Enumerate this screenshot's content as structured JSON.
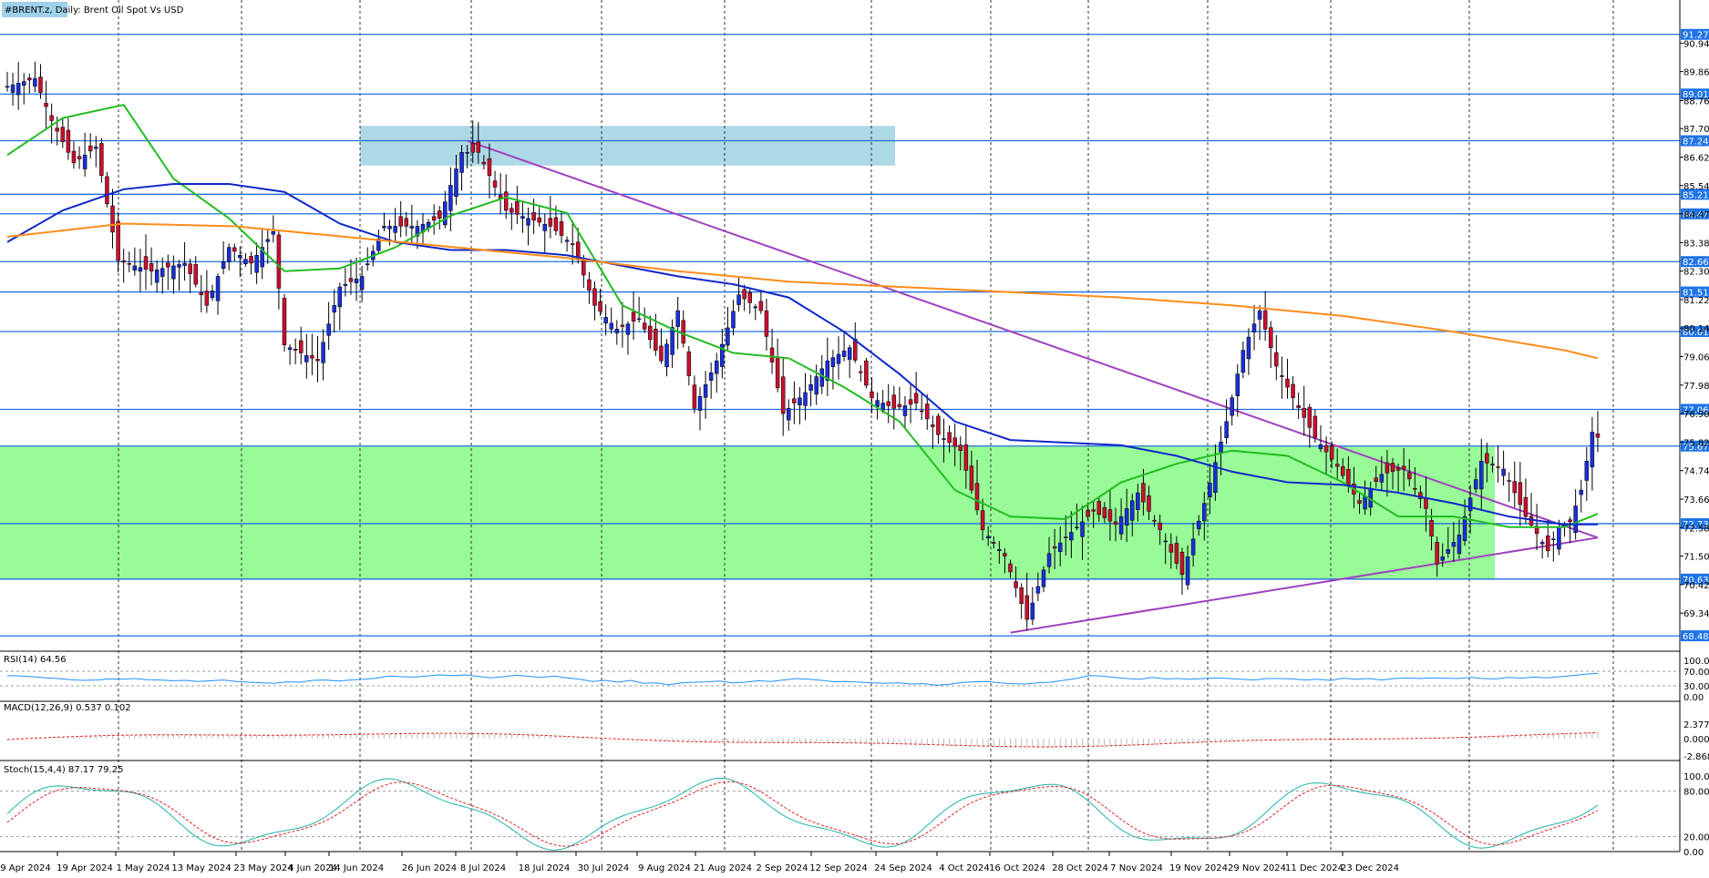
{
  "window": {
    "title": "#BRENT.z, Daily:  Brent Oil Spot Vs USD"
  },
  "chart_data": {
    "type": "candlestick",
    "symbol": "#BRENT.z",
    "timeframe": "Daily",
    "description": "Brent Oil Spot Vs USD",
    "price_axis": {
      "range": [
        68.0,
        92.4
      ],
      "ticks": [
        "90.94",
        "89.86",
        "88.76",
        "87.70",
        "86.62",
        "85.54",
        "84.47",
        "83.38",
        "82.30",
        "81.22",
        "80.14",
        "79.06",
        "77.98",
        "76.90",
        "75.82",
        "74.74",
        "73.66",
        "72.58",
        "71.50",
        "70.42",
        "69.34"
      ]
    },
    "x_labels": [
      "9 Apr 2024",
      "19 Apr 2024",
      "1 May 2024",
      "13 May 2024",
      "23 May 2024",
      "4 Jun 2024",
      "14 Jun 2024",
      "26 Jun 2024",
      "8 Jul 2024",
      "18 Jul 2024",
      "30 Jul 2024",
      "9 Aug 2024",
      "21 Aug 2024",
      "2 Sep 2024",
      "12 Sep 2024",
      "24 Sep 2024",
      "4 Oct 2024",
      "16 Oct 2024",
      "28 Oct 2024",
      "7 Nov 2024",
      "19 Nov 2024",
      "29 Nov 2024",
      "11 Dec 2024",
      "23 Dec 2024"
    ],
    "levels": [
      "91.27",
      "89.01",
      "87.24",
      "85.21",
      "84.47",
      "82.66",
      "81.51",
      "80.01",
      "77.06",
      "75.67",
      "72.73",
      "70.63",
      "68.48"
    ],
    "zones": {
      "supply": {
        "from": 86.3,
        "to": 87.8,
        "color": "#add8e6"
      },
      "range": {
        "from": 70.63,
        "to": 75.67,
        "color": "#98fb98"
      }
    },
    "trendlines": {
      "color": "#a040c0",
      "descending": {
        "from": [
          83,
          87.24
        ],
        "to": [
          287,
          72.2
        ]
      },
      "ascending": {
        "from": [
          181,
          68.6
        ],
        "to": [
          287,
          72.2
        ]
      }
    },
    "moving_averages": [
      {
        "color": "#22bb22",
        "points": [
          [
            0,
            86.7
          ],
          [
            10,
            88.1
          ],
          [
            21,
            88.6
          ],
          [
            30,
            85.8
          ],
          [
            40,
            84.3
          ],
          [
            50,
            82.3
          ],
          [
            60,
            82.4
          ],
          [
            70,
            83.2
          ],
          [
            80,
            84.4
          ],
          [
            90,
            85.1
          ],
          [
            101,
            84.5
          ],
          [
            111,
            81.0
          ],
          [
            121,
            80.0
          ],
          [
            131,
            79.2
          ],
          [
            141,
            79.0
          ],
          [
            151,
            77.9
          ],
          [
            161,
            76.6
          ],
          [
            171,
            74.0
          ],
          [
            181,
            73.0
          ],
          [
            191,
            72.9
          ],
          [
            201,
            74.3
          ],
          [
            211,
            75.0
          ],
          [
            221,
            75.5
          ],
          [
            231,
            75.3
          ],
          [
            241,
            74.3
          ],
          [
            251,
            73.0
          ],
          [
            261,
            73.0
          ],
          [
            271,
            72.6
          ],
          [
            281,
            72.6
          ],
          [
            287,
            73.1
          ]
        ]
      },
      {
        "color": "#1028c8",
        "points": [
          [
            0,
            83.4
          ],
          [
            10,
            84.6
          ],
          [
            21,
            85.4
          ],
          [
            30,
            85.6
          ],
          [
            40,
            85.6
          ],
          [
            50,
            85.3
          ],
          [
            60,
            84.1
          ],
          [
            70,
            83.4
          ],
          [
            80,
            83.1
          ],
          [
            90,
            83.1
          ],
          [
            101,
            82.9
          ],
          [
            111,
            82.5
          ],
          [
            121,
            82.1
          ],
          [
            131,
            81.8
          ],
          [
            141,
            81.3
          ],
          [
            151,
            80.0
          ],
          [
            161,
            78.4
          ],
          [
            171,
            76.6
          ],
          [
            181,
            75.9
          ],
          [
            191,
            75.8
          ],
          [
            201,
            75.7
          ],
          [
            211,
            75.3
          ],
          [
            221,
            74.7
          ],
          [
            231,
            74.3
          ],
          [
            241,
            74.2
          ],
          [
            251,
            73.9
          ],
          [
            261,
            73.5
          ],
          [
            271,
            73.0
          ],
          [
            281,
            72.7
          ],
          [
            287,
            72.7
          ]
        ]
      },
      {
        "color": "#ff8c1a",
        "points": [
          [
            0,
            83.6
          ],
          [
            21,
            84.1
          ],
          [
            41,
            84.0
          ],
          [
            61,
            83.6
          ],
          [
            81,
            83.2
          ],
          [
            101,
            82.8
          ],
          [
            121,
            82.3
          ],
          [
            141,
            81.9
          ],
          [
            161,
            81.7
          ],
          [
            181,
            81.5
          ],
          [
            201,
            81.3
          ],
          [
            221,
            81.0
          ],
          [
            241,
            80.6
          ],
          [
            261,
            80.0
          ],
          [
            281,
            79.3
          ],
          [
            287,
            79.0
          ]
        ]
      }
    ],
    "rsi": {
      "label": "RSI(14) 64.56",
      "ticks": [
        "100.00",
        "70.00",
        "30.00",
        "0.00"
      ],
      "values": [
        58,
        57,
        55,
        52,
        50,
        47,
        45,
        46,
        49,
        48,
        50,
        47,
        46,
        44,
        45,
        42,
        44,
        46,
        42,
        40,
        38,
        37,
        41,
        40,
        45,
        46,
        43,
        46,
        48,
        51,
        57,
        55,
        54,
        57,
        60,
        58,
        60,
        56,
        52,
        55,
        59,
        56,
        53,
        57,
        52,
        48,
        42,
        45,
        40,
        45,
        37,
        38,
        33,
        38,
        40,
        41,
        43,
        38,
        40,
        44,
        42,
        46,
        50,
        48,
        45,
        41,
        42,
        40,
        38,
        37,
        38,
        35,
        36,
        32,
        34,
        39,
        41,
        42,
        38,
        36,
        35,
        38,
        40,
        45,
        50,
        58,
        57,
        53,
        50,
        48,
        53,
        49,
        50,
        48,
        50,
        52,
        50,
        48,
        46,
        50,
        50,
        49,
        46,
        48,
        45,
        51,
        48,
        50,
        46,
        50,
        52,
        50,
        52,
        51,
        50,
        53,
        50,
        49,
        53,
        51,
        54,
        52,
        55,
        58,
        62,
        64.56
      ]
    },
    "macd": {
      "label": "MACD(12,26,9) 0.537 0.102",
      "ticks": [
        "2.377",
        "0.000",
        "-2.868"
      ]
    },
    "stoch": {
      "label": "Stoch(15,4,4) 87.17 79.25",
      "ticks": [
        "100.00",
        "80.00",
        "20.00",
        "0.00"
      ]
    }
  }
}
